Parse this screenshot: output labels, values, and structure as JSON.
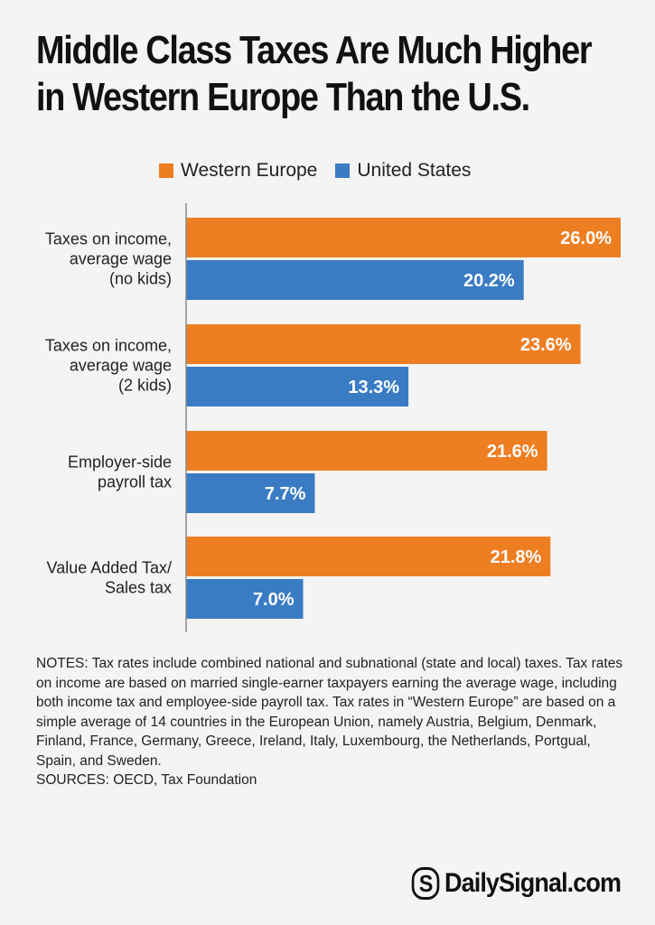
{
  "title": {
    "line1": "Middle Class Taxes Are Much Higher",
    "line2": "in Western Europe Than the U.S."
  },
  "colors": {
    "western_europe": "#ee7e22",
    "united_states": "#3a7cc4",
    "axis": "#8a8a8a"
  },
  "chart_data": {
    "type": "bar",
    "orientation": "horizontal",
    "categories": [
      [
        "Taxes on income,",
        "average wage",
        "(no kids)"
      ],
      [
        "Taxes on income,",
        "average wage",
        "(2 kids)"
      ],
      [
        "Employer-side",
        "payroll tax"
      ],
      [
        "Value Added Tax/",
        "Sales tax"
      ]
    ],
    "series": [
      {
        "name": "Western Europe",
        "values": [
          26.0,
          23.6,
          21.6,
          21.8
        ],
        "labels": [
          "26.0%",
          "23.6%",
          "21.6%",
          "21.8%"
        ]
      },
      {
        "name": "United States",
        "values": [
          20.2,
          13.3,
          7.7,
          7.0
        ],
        "labels": [
          "20.2%",
          "13.3%",
          "7.7%",
          "7.0%"
        ]
      }
    ],
    "xlim": [
      0,
      26.0
    ],
    "grid": false,
    "legend_position": "top"
  },
  "notes": {
    "text": "NOTES: Tax rates include combined national and subnational (state and local) taxes. Tax rates on income are based on married single-earner taxpayers earning the average wage, including both income tax and employee-side payroll tax. Tax rates in “Western Europe” are based on a simple average of 14 countries in the European Union, namely Austria, Belgium, Denmark, Finland, France, Germany, Greece, Ireland, Italy, Luxembourg, the Netherlands, Portgual, Spain, and Sweden.",
    "sources": "SOURCES: OECD, Tax Foundation"
  },
  "logo": {
    "mark": "S",
    "text": "DailySignal.com"
  }
}
